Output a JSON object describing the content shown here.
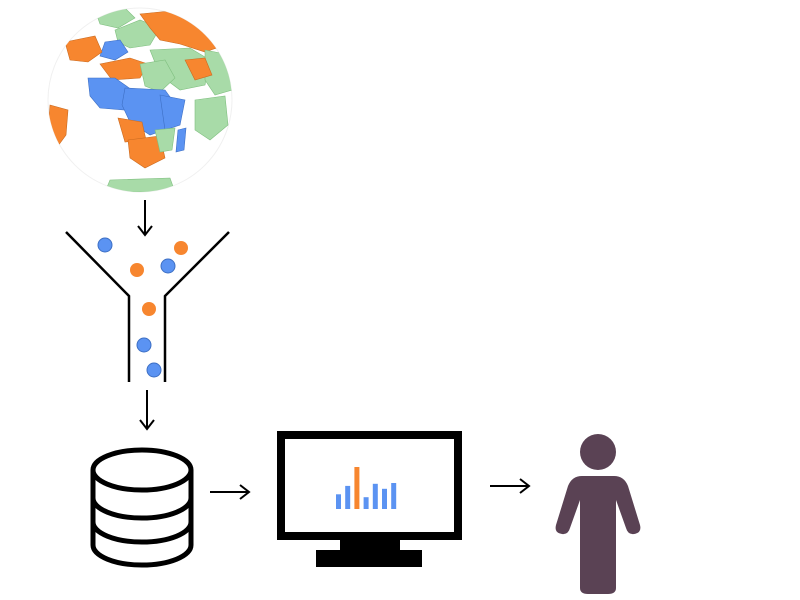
{
  "colors": {
    "orange": "#f7862f",
    "blue": "#5b93f2",
    "green": "#a8dba8",
    "ocean": "#ffffff",
    "ink": "#000000",
    "person": "#5a4254"
  },
  "nodes": [
    {
      "name": "globe",
      "icon": "globe-icon"
    },
    {
      "name": "funnel",
      "icon": "funnel-icon"
    },
    {
      "name": "database",
      "icon": "database-icon"
    },
    {
      "name": "monitor",
      "icon": "monitor-chart-icon"
    },
    {
      "name": "person",
      "icon": "person-icon"
    }
  ],
  "funnel_particles": [
    "blue",
    "orange",
    "orange",
    "blue",
    "orange",
    "blue",
    "blue"
  ],
  "monitor_chart": {
    "bars": [
      {
        "value": 0.35,
        "color": "blue"
      },
      {
        "value": 0.55,
        "color": "blue"
      },
      {
        "value": 1.0,
        "color": "orange"
      },
      {
        "value": 0.28,
        "color": "blue"
      },
      {
        "value": 0.6,
        "color": "blue"
      },
      {
        "value": 0.48,
        "color": "blue"
      },
      {
        "value": 0.62,
        "color": "blue"
      }
    ]
  },
  "arrows": [
    {
      "from": "globe",
      "to": "funnel"
    },
    {
      "from": "funnel",
      "to": "database"
    },
    {
      "from": "database",
      "to": "monitor"
    },
    {
      "from": "monitor",
      "to": "person"
    }
  ]
}
